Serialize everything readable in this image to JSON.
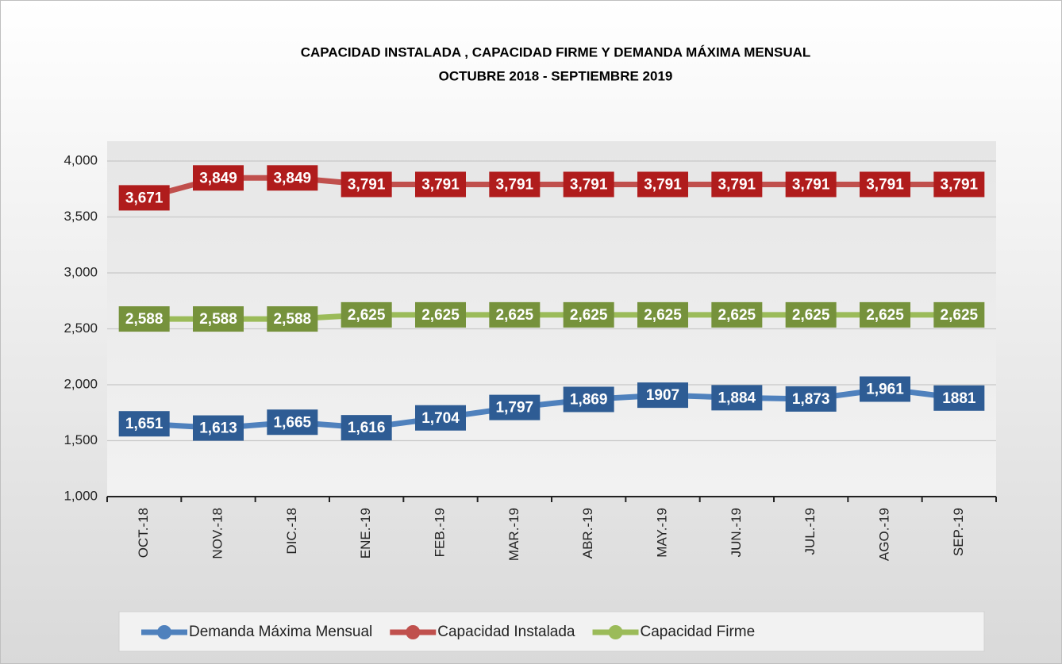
{
  "chart_data": {
    "type": "line",
    "title": "CAPACIDAD INSTALADA , CAPACIDAD FIRME Y DEMANDA MÁXIMA MENSUAL",
    "subtitle": "OCTUBRE 2018 - SEPTIEMBRE 2019",
    "categories": [
      "OCT.-18",
      "NOV.-18",
      "DIC.-18",
      "ENE.-19",
      "FEB.-19",
      "MAR.-19",
      "ABR.-19",
      "MAY.-19",
      "JUN.-19",
      "JUL.-19",
      "AGO.-19",
      "SEP.-19"
    ],
    "series": [
      {
        "name": "Demanda Máxima Mensual",
        "color": "#4f81bd",
        "label_color": "#2e5c94",
        "values": [
          1651,
          1613,
          1665,
          1616,
          1704,
          1797,
          1869,
          1907,
          1884,
          1873,
          1961,
          1881
        ],
        "value_labels": [
          "1,651",
          "1,613",
          "1,665",
          "1,616",
          "1,704",
          "1,797",
          "1,869",
          "1907",
          "1,884",
          "1,873",
          "1,961",
          "1881"
        ]
      },
      {
        "name": "Capacidad Instalada",
        "color": "#c0504d",
        "label_color": "#b01c1c",
        "values": [
          3671,
          3849,
          3849,
          3791,
          3791,
          3791,
          3791,
          3791,
          3791,
          3791,
          3791,
          3791
        ],
        "value_labels": [
          "3,671",
          "3,849",
          "3,849",
          "3,791",
          "3,791",
          "3,791",
          "3,791",
          "3,791",
          "3,791",
          "3,791",
          "3,791",
          "3,791"
        ]
      },
      {
        "name": "Capacidad Firme",
        "color": "#9bbb59",
        "label_color": "#76923c",
        "values": [
          2588,
          2588,
          2588,
          2625,
          2625,
          2625,
          2625,
          2625,
          2625,
          2625,
          2625,
          2625
        ],
        "value_labels": [
          "2,588",
          "2,588",
          "2,588",
          "2,625",
          "2,625",
          "2,625",
          "2,625",
          "2,625",
          "2,625",
          "2,625",
          "2,625",
          "2,625"
        ]
      }
    ],
    "ylim": [
      1000,
      4000
    ],
    "yticks": [
      {
        "value": 1000,
        "label": "1,000"
      },
      {
        "value": 1500,
        "label": "1,500"
      },
      {
        "value": 2000,
        "label": "2,000"
      },
      {
        "value": 2500,
        "label": "2,500"
      },
      {
        "value": 3000,
        "label": "3,000"
      },
      {
        "value": 3500,
        "label": "3,500"
      },
      {
        "value": 4000,
        "label": "4,000"
      }
    ],
    "grid": true,
    "legend": "bottom"
  }
}
